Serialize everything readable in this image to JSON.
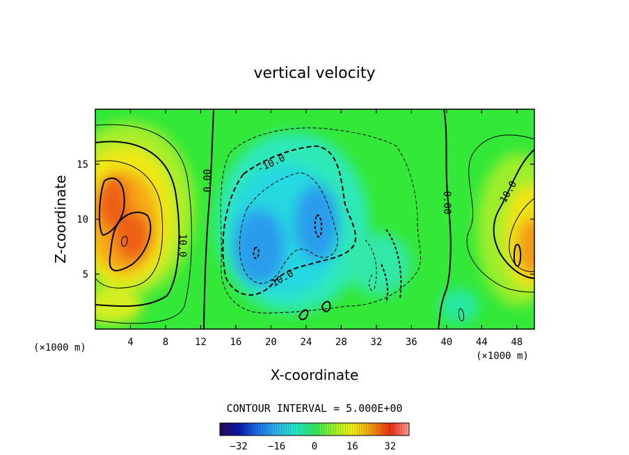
{
  "chart_data": {
    "type": "heatmap",
    "title": "vertical velocity",
    "xlabel": "X-coordinate",
    "ylabel": "Z-coordinate",
    "x_unit": "(×1000 m)",
    "y_unit": "(×1000 m)",
    "xlim": [
      0,
      50
    ],
    "ylim": [
      0,
      20
    ],
    "x_ticks": [
      4,
      8,
      12,
      16,
      20,
      24,
      28,
      32,
      36,
      40,
      44,
      48
    ],
    "y_ticks": [
      5,
      10,
      15
    ],
    "contour_interval_text": "CONTOUR INTERVAL = 5.000E+00",
    "contour_interval": 5.0,
    "contour_labels": [
      {
        "text": "0.00",
        "x": 12.7,
        "z": 13.5,
        "angle": -90
      },
      {
        "text": "0.00",
        "x": 40.1,
        "z": 11.5,
        "angle": 90
      },
      {
        "text": "10.0",
        "x": 10.0,
        "z": 7.6,
        "angle": 90
      },
      {
        "text": "10.0",
        "x": 47.0,
        "z": 12.5,
        "angle": -60
      },
      {
        "text": "-10.0",
        "x": 20.0,
        "z": 15.1,
        "angle": -25
      },
      {
        "text": "-10.0",
        "x": 21.0,
        "z": 4.5,
        "angle": -30
      }
    ],
    "colorbar": {
      "min": -40,
      "max": 40,
      "ticks": [
        -32,
        -16,
        0,
        16,
        32
      ],
      "colors": [
        "#2a0a5a",
        "#0a1aa8",
        "#1f6fe6",
        "#2fb4e8",
        "#26e8c8",
        "#2ee860",
        "#9af22a",
        "#f2f016",
        "#f49a10",
        "#ea3010",
        "#ff9a9a"
      ]
    },
    "features": [
      {
        "kind": "updraft",
        "x": 3.2,
        "z": 10.0,
        "max": 32
      },
      {
        "kind": "updraft",
        "x": 48.5,
        "z": 7.5,
        "max": 28
      },
      {
        "kind": "downdraft",
        "x": 18.5,
        "z": 7.2,
        "min": -20
      },
      {
        "kind": "downdraft",
        "x": 25.5,
        "z": 10.0,
        "min": -22
      }
    ]
  }
}
